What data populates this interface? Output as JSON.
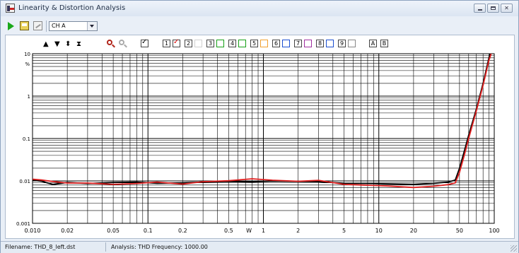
{
  "window": {
    "title": "Linearity & Distortion Analysis"
  },
  "toolbar": {
    "channel": "CH A"
  },
  "controls": {
    "numbers": [
      "1",
      "2",
      "3",
      "4",
      "5",
      "6",
      "7",
      "8",
      "9"
    ],
    "colors": [
      "#d00000",
      "#d0d0d0",
      "#18a018",
      "#18a018",
      "#f0a030",
      "#1c4fd0",
      "#a030a0",
      "#1c4fd0",
      "#888888"
    ],
    "ab": [
      "A",
      "B"
    ]
  },
  "chart_data": {
    "type": "line",
    "x_scale": "log",
    "y_scale": "log",
    "xlim": [
      0.01,
      100
    ],
    "ylim": [
      0.001,
      10
    ],
    "x_ticks": [
      "0.010",
      "0.02",
      "0.05",
      "0.1",
      "0.2",
      "0.5",
      "1",
      "2",
      "5",
      "10",
      "20",
      "50",
      "100"
    ],
    "x_tick_values": [
      0.01,
      0.02,
      0.05,
      0.1,
      0.2,
      0.5,
      1,
      2,
      5,
      10,
      20,
      50,
      100
    ],
    "y_ticks": [
      "0.001",
      "0.01",
      "0.1",
      "1",
      "10"
    ],
    "y_tick_values": [
      0.001,
      0.01,
      0.1,
      1,
      10
    ],
    "y_unit": "%",
    "x_extra_label": "W",
    "x_extra_value": 0.75,
    "grid": true,
    "series": [
      {
        "color": "#000000",
        "points": [
          [
            0.01,
            0.0105
          ],
          [
            0.012,
            0.0098
          ],
          [
            0.015,
            0.0083
          ],
          [
            0.02,
            0.0092
          ],
          [
            0.03,
            0.0087
          ],
          [
            0.05,
            0.0092
          ],
          [
            0.08,
            0.0094
          ],
          [
            0.12,
            0.0088
          ],
          [
            0.2,
            0.009
          ],
          [
            0.3,
            0.0094
          ],
          [
            0.5,
            0.0097
          ],
          [
            0.8,
            0.0095
          ],
          [
            1.2,
            0.0099
          ],
          [
            2,
            0.0097
          ],
          [
            3,
            0.0096
          ],
          [
            5,
            0.0088
          ],
          [
            8,
            0.0087
          ],
          [
            12,
            0.0085
          ],
          [
            20,
            0.0083
          ],
          [
            30,
            0.0088
          ],
          [
            40,
            0.0094
          ],
          [
            46,
            0.0105
          ],
          [
            50,
            0.02
          ],
          [
            55,
            0.05
          ],
          [
            60,
            0.12
          ],
          [
            70,
            0.5
          ],
          [
            80,
            2.0
          ],
          [
            90,
            8.0
          ],
          [
            92,
            10
          ]
        ]
      },
      {
        "color": "#e02020",
        "points": [
          [
            0.01,
            0.011
          ],
          [
            0.012,
            0.0105
          ],
          [
            0.015,
            0.0097
          ],
          [
            0.02,
            0.0089
          ],
          [
            0.03,
            0.0089
          ],
          [
            0.05,
            0.0083
          ],
          [
            0.08,
            0.0087
          ],
          [
            0.12,
            0.0094
          ],
          [
            0.2,
            0.0084
          ],
          [
            0.3,
            0.0096
          ],
          [
            0.5,
            0.0101
          ],
          [
            0.8,
            0.0112
          ],
          [
            1.2,
            0.0104
          ],
          [
            2,
            0.0098
          ],
          [
            3,
            0.0103
          ],
          [
            5,
            0.0083
          ],
          [
            8,
            0.0079
          ],
          [
            12,
            0.0076
          ],
          [
            20,
            0.007
          ],
          [
            30,
            0.0075
          ],
          [
            40,
            0.0082
          ],
          [
            46,
            0.009
          ],
          [
            50,
            0.016
          ],
          [
            55,
            0.04
          ],
          [
            60,
            0.1
          ],
          [
            70,
            0.45
          ],
          [
            80,
            1.8
          ],
          [
            90,
            7.0
          ],
          [
            94,
            10
          ]
        ]
      }
    ]
  },
  "status": {
    "filename": "Filename: THD_8_left.dst",
    "analysis": "Analysis: THD   Frequency: 1000.00"
  }
}
